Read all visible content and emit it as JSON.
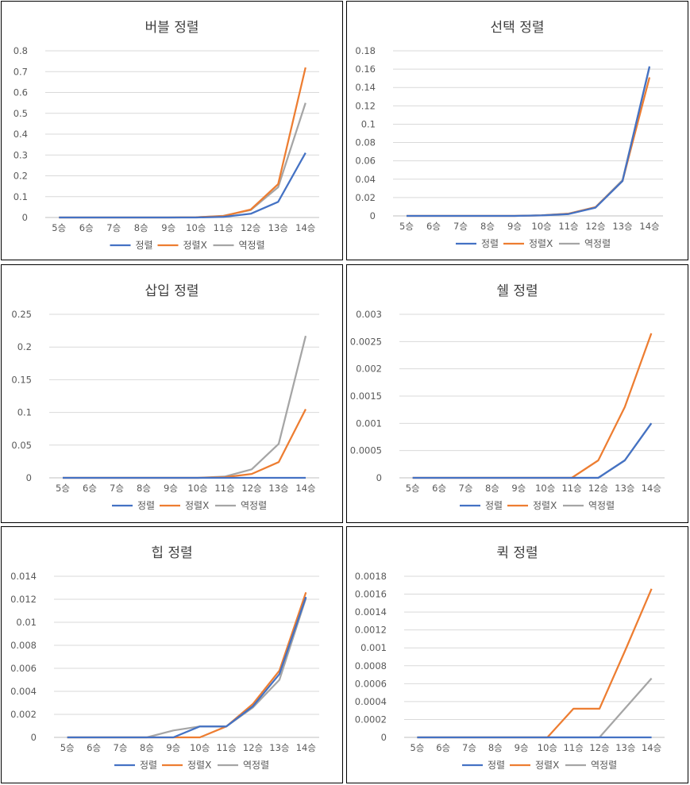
{
  "colors": {
    "정렬": "#4472c4",
    "정렬X": "#ed7d31",
    "역정렬": "#a5a5a5"
  },
  "chart_data": [
    {
      "type": "line",
      "title": "버블 정렬",
      "categories": [
        "5승",
        "6승",
        "7승",
        "8승",
        "9승",
        "10승",
        "11승",
        "12승",
        "13승",
        "14승"
      ],
      "yticks": [
        "0",
        "0.1",
        "0.2",
        "0.3",
        "0.4",
        "0.5",
        "0.6",
        "0.7",
        "0.8"
      ],
      "ylim": [
        0,
        0.8
      ],
      "series": [
        {
          "name": "정렬",
          "values": [
            0,
            0,
            0,
            0,
            0,
            0,
            0.003,
            0.018,
            0.075,
            0.31
          ]
        },
        {
          "name": "정렬X",
          "values": [
            0,
            0,
            0,
            0,
            0,
            0.001,
            0.007,
            0.038,
            0.16,
            0.72
          ]
        },
        {
          "name": "역정렬",
          "values": [
            0,
            0,
            0,
            0,
            0,
            0.001,
            0.008,
            0.036,
            0.145,
            0.55
          ]
        }
      ],
      "legend": "bottom"
    },
    {
      "type": "line",
      "title": "선택 정렬",
      "categories": [
        "5승",
        "6승",
        "7승",
        "8승",
        "9승",
        "10승",
        "11승",
        "12승",
        "13승",
        "14승"
      ],
      "yticks": [
        "0",
        "0.02",
        "0.04",
        "0.06",
        "0.08",
        "0.1",
        "0.12",
        "0.14",
        "0.16",
        "0.18"
      ],
      "ylim": [
        0,
        0.18
      ],
      "series": [
        {
          "name": "정렬",
          "values": [
            0,
            0,
            0,
            0,
            0,
            0.0005,
            0.002,
            0.009,
            0.038,
            0.163
          ]
        },
        {
          "name": "정렬X",
          "values": [
            0,
            0,
            0,
            0,
            0,
            0.0005,
            0.0023,
            0.0095,
            0.038,
            0.151
          ]
        },
        {
          "name": "역정렬",
          "values": [
            0,
            0,
            0,
            0,
            0,
            0.0006,
            0.0025,
            0.0095,
            0.039,
            0.162
          ]
        }
      ],
      "legend": "bottom"
    },
    {
      "type": "line",
      "title": "삽입 정렬",
      "categories": [
        "5승",
        "6승",
        "7승",
        "8승",
        "9승",
        "10승",
        "11승",
        "12승",
        "13승",
        "14승"
      ],
      "yticks": [
        "0",
        "0.05",
        "0.1",
        "0.15",
        "0.2",
        "0.25"
      ],
      "ylim": [
        0,
        0.25
      ],
      "series": [
        {
          "name": "정렬",
          "values": [
            0,
            0,
            0,
            0,
            0,
            0,
            0,
            0,
            0,
            0
          ]
        },
        {
          "name": "정렬X",
          "values": [
            0,
            0,
            0,
            0,
            0,
            0,
            0.001,
            0.006,
            0.024,
            0.105
          ]
        },
        {
          "name": "역정렬",
          "values": [
            0,
            0,
            0,
            0,
            0,
            0,
            0.002,
            0.013,
            0.052,
            0.217
          ]
        }
      ],
      "legend": "bottom"
    },
    {
      "type": "line",
      "title": "쉘 정렬",
      "categories": [
        "5승",
        "6승",
        "7승",
        "8승",
        "9승",
        "10승",
        "11승",
        "12승",
        "13승",
        "14승"
      ],
      "yticks": [
        "0",
        "0.0005",
        "0.001",
        "0.0015",
        "0.002",
        "0.0025",
        "0.003"
      ],
      "ylim": [
        0,
        0.003
      ],
      "series": [
        {
          "name": "정렬",
          "values": [
            0,
            0,
            0,
            0,
            0,
            0,
            0,
            0,
            0.00032,
            0.001
          ]
        },
        {
          "name": "정렬X",
          "values": [
            0,
            0,
            0,
            0,
            0,
            0,
            0,
            0.00032,
            0.0013,
            0.00265
          ]
        },
        {
          "name": "역정렬",
          "values": [
            0,
            0,
            0,
            0,
            0,
            0,
            0,
            0,
            0.00032,
            0.001
          ]
        }
      ],
      "legend": "bottom"
    },
    {
      "type": "line",
      "title": "힙 정렬",
      "categories": [
        "5승",
        "6승",
        "7승",
        "8승",
        "9승",
        "10승",
        "11승",
        "12승",
        "13승",
        "14승"
      ],
      "yticks": [
        "0",
        "0.002",
        "0.004",
        "0.006",
        "0.008",
        "0.01",
        "0.012",
        "0.014"
      ],
      "ylim": [
        0,
        0.014
      ],
      "series": [
        {
          "name": "정렬",
          "values": [
            0,
            0,
            0,
            0,
            0,
            0.00095,
            0.00095,
            0.0027,
            0.0055,
            0.0122
          ]
        },
        {
          "name": "정렬X",
          "values": [
            0,
            0,
            0,
            0,
            0,
            0,
            0.00095,
            0.0029,
            0.0058,
            0.0126
          ]
        },
        {
          "name": "역정렬",
          "values": [
            0,
            0,
            0,
            0,
            0.0006,
            0.00095,
            0.00095,
            0.0026,
            0.005,
            0.0121
          ]
        }
      ],
      "legend": "bottom"
    },
    {
      "type": "line",
      "title": "퀵 정렬",
      "categories": [
        "5승",
        "6승",
        "7승",
        "8승",
        "9승",
        "10승",
        "11승",
        "12승",
        "13승",
        "14승"
      ],
      "yticks": [
        "0",
        "0.0002",
        "0.0004",
        "0.0006",
        "0.0008",
        "0.001",
        "0.0012",
        "0.0014",
        "0.0016",
        "0.0018"
      ],
      "ylim": [
        0,
        0.0018
      ],
      "series": [
        {
          "name": "정렬",
          "values": [
            0,
            0,
            0,
            0,
            0,
            0,
            0,
            0,
            0,
            0
          ]
        },
        {
          "name": "정렬X",
          "values": [
            0,
            0,
            0,
            0,
            0,
            0,
            0.00032,
            0.00032,
            0.00098,
            0.00166
          ]
        },
        {
          "name": "역정렬",
          "values": [
            0,
            0,
            0,
            0,
            0,
            0,
            0,
            0,
            0.00033,
            0.00066
          ]
        }
      ],
      "legend": "bottom"
    }
  ]
}
